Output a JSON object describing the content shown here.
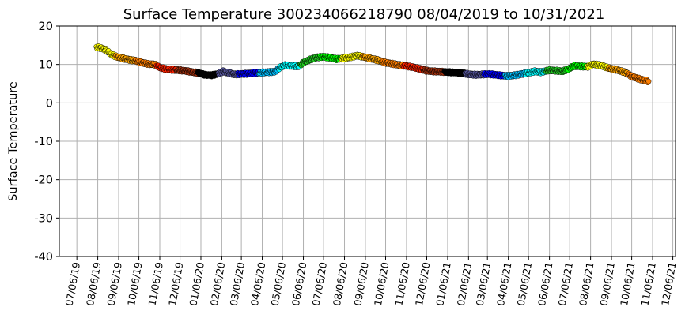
{
  "chart_data": {
    "type": "scatter",
    "title": "Surface Temperature 300234066218790  08/04/2019 to 10/31/2021",
    "xlabel": "",
    "ylabel": "Surface Temperature",
    "ylim": [
      -40,
      20
    ],
    "yticks": [
      20,
      10,
      0,
      -10,
      -20,
      -30,
      -40
    ],
    "xlim": [
      "2019-06-10",
      "2021-12-10"
    ],
    "xticks": [
      "07/06/19",
      "08/06/19",
      "09/06/19",
      "10/06/19",
      "11/06/19",
      "12/06/19",
      "01/06/20",
      "02/06/20",
      "03/06/20",
      "04/06/20",
      "05/06/20",
      "06/06/20",
      "07/06/20",
      "08/06/20",
      "09/06/20",
      "10/06/20",
      "11/06/20",
      "12/06/20",
      "01/06/21",
      "02/06/21",
      "03/06/21",
      "04/06/21",
      "05/06/21",
      "06/06/21",
      "07/06/21",
      "08/06/21",
      "09/06/21",
      "10/06/21",
      "11/06/21",
      "12/06/21"
    ],
    "grid": true,
    "legend": "none",
    "month_colors": {
      "01": "#000000",
      "02": "#55559a",
      "03": "#0000ff",
      "04": "#00bfff",
      "05": "#00ffff",
      "06": "#22cc22",
      "07": "#00ff00",
      "08": "#ffff00",
      "09": "#ffa500",
      "10": "#ff7f00",
      "11": "#ff2200",
      "12": "#a0300e"
    },
    "points": [
      {
        "date": "2019-08-04",
        "t": 14.5
      },
      {
        "date": "2019-08-10",
        "t": 14.3
      },
      {
        "date": "2019-08-18",
        "t": 13.8
      },
      {
        "date": "2019-08-26",
        "t": 12.6
      },
      {
        "date": "2019-09-03",
        "t": 12.0
      },
      {
        "date": "2019-09-12",
        "t": 11.6
      },
      {
        "date": "2019-09-22",
        "t": 11.2
      },
      {
        "date": "2019-10-01",
        "t": 11.0
      },
      {
        "date": "2019-10-10",
        "t": 10.5
      },
      {
        "date": "2019-10-20",
        "t": 10.1
      },
      {
        "date": "2019-10-30",
        "t": 10.0
      },
      {
        "date": "2019-11-06",
        "t": 9.2
      },
      {
        "date": "2019-11-15",
        "t": 8.8
      },
      {
        "date": "2019-11-25",
        "t": 8.6
      },
      {
        "date": "2019-12-05",
        "t": 8.5
      },
      {
        "date": "2019-12-15",
        "t": 8.3
      },
      {
        "date": "2019-12-25",
        "t": 8.0
      },
      {
        "date": "2020-01-03",
        "t": 7.8
      },
      {
        "date": "2020-01-12",
        "t": 7.3
      },
      {
        "date": "2020-01-22",
        "t": 7.2
      },
      {
        "date": "2020-01-31",
        "t": 7.5
      },
      {
        "date": "2020-02-08",
        "t": 8.2
      },
      {
        "date": "2020-02-16",
        "t": 7.8
      },
      {
        "date": "2020-02-25",
        "t": 7.4
      },
      {
        "date": "2020-03-05",
        "t": 7.5
      },
      {
        "date": "2020-03-15",
        "t": 7.6
      },
      {
        "date": "2020-03-25",
        "t": 7.8
      },
      {
        "date": "2020-04-05",
        "t": 7.9
      },
      {
        "date": "2020-04-15",
        "t": 8.0
      },
      {
        "date": "2020-04-25",
        "t": 8.1
      },
      {
        "date": "2020-05-02",
        "t": 9.2
      },
      {
        "date": "2020-05-10",
        "t": 9.8
      },
      {
        "date": "2020-05-20",
        "t": 9.6
      },
      {
        "date": "2020-05-30",
        "t": 9.5
      },
      {
        "date": "2020-06-06",
        "t": 10.5
      },
      {
        "date": "2020-06-15",
        "t": 11.2
      },
      {
        "date": "2020-06-25",
        "t": 11.8
      },
      {
        "date": "2020-07-05",
        "t": 12.0
      },
      {
        "date": "2020-07-15",
        "t": 11.8
      },
      {
        "date": "2020-07-25",
        "t": 11.4
      },
      {
        "date": "2020-08-05",
        "t": 11.6
      },
      {
        "date": "2020-08-15",
        "t": 11.9
      },
      {
        "date": "2020-08-25",
        "t": 12.3
      },
      {
        "date": "2020-09-05",
        "t": 11.9
      },
      {
        "date": "2020-09-15",
        "t": 11.5
      },
      {
        "date": "2020-09-25",
        "t": 11.1
      },
      {
        "date": "2020-10-05",
        "t": 10.5
      },
      {
        "date": "2020-10-15",
        "t": 10.2
      },
      {
        "date": "2020-10-25",
        "t": 9.9
      },
      {
        "date": "2020-11-05",
        "t": 9.6
      },
      {
        "date": "2020-11-15",
        "t": 9.3
      },
      {
        "date": "2020-11-25",
        "t": 8.9
      },
      {
        "date": "2020-12-05",
        "t": 8.4
      },
      {
        "date": "2020-12-15",
        "t": 8.2
      },
      {
        "date": "2020-12-28",
        "t": 8.1
      },
      {
        "date": "2021-01-06",
        "t": 8.0
      },
      {
        "date": "2021-01-18",
        "t": 7.9
      },
      {
        "date": "2021-01-30",
        "t": 7.7
      },
      {
        "date": "2021-02-08",
        "t": 7.4
      },
      {
        "date": "2021-02-18",
        "t": 7.3
      },
      {
        "date": "2021-02-27",
        "t": 7.4
      },
      {
        "date": "2021-03-08",
        "t": 7.5
      },
      {
        "date": "2021-03-18",
        "t": 7.3
      },
      {
        "date": "2021-03-28",
        "t": 7.1
      },
      {
        "date": "2021-04-06",
        "t": 7.0
      },
      {
        "date": "2021-04-16",
        "t": 7.2
      },
      {
        "date": "2021-04-26",
        "t": 7.5
      },
      {
        "date": "2021-05-05",
        "t": 7.8
      },
      {
        "date": "2021-05-15",
        "t": 8.2
      },
      {
        "date": "2021-05-25",
        "t": 8.0
      },
      {
        "date": "2021-06-05",
        "t": 8.5
      },
      {
        "date": "2021-06-15",
        "t": 8.4
      },
      {
        "date": "2021-06-25",
        "t": 8.2
      },
      {
        "date": "2021-07-04",
        "t": 8.8
      },
      {
        "date": "2021-07-12",
        "t": 9.6
      },
      {
        "date": "2021-07-22",
        "t": 9.5
      },
      {
        "date": "2021-08-02",
        "t": 9.4
      },
      {
        "date": "2021-08-10",
        "t": 10.1
      },
      {
        "date": "2021-08-20",
        "t": 9.8
      },
      {
        "date": "2021-08-30",
        "t": 9.2
      },
      {
        "date": "2021-09-08",
        "t": 8.8
      },
      {
        "date": "2021-09-18",
        "t": 8.4
      },
      {
        "date": "2021-09-28",
        "t": 7.8
      },
      {
        "date": "2021-10-06",
        "t": 6.9
      },
      {
        "date": "2021-10-14",
        "t": 6.4
      },
      {
        "date": "2021-10-22",
        "t": 6.0
      },
      {
        "date": "2021-10-31",
        "t": 5.6
      }
    ]
  }
}
